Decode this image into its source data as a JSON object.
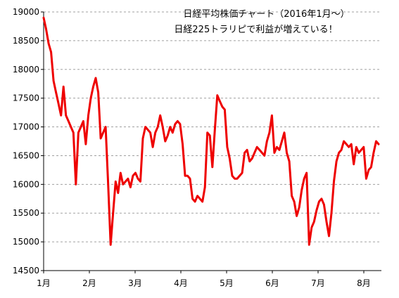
{
  "chart_data": {
    "type": "line",
    "title": "日経平均株価チャート（2016年1月～）",
    "subtitle": "日経225トラリピで利益が増えている！",
    "xlabel": "",
    "ylabel": "",
    "ylim": [
      14500,
      19000
    ],
    "yticks": [
      14500,
      15000,
      15500,
      16000,
      16500,
      17000,
      17500,
      18000,
      18500,
      19000
    ],
    "ytick_labels": [
      "14500",
      "15000",
      "15500",
      "16000",
      "16500",
      "17000",
      "17500",
      "18000",
      "18500",
      "19000"
    ],
    "xtick_labels": [
      "1月",
      "2月",
      "3月",
      "4月",
      "5月",
      "6月",
      "7月",
      "8月"
    ],
    "grid": "horizontal-dashed",
    "legend": "none",
    "series": [
      {
        "color": "#ee0000",
        "values": [
          18900,
          18700,
          18450,
          18300,
          17800,
          17600,
          17400,
          17200,
          17700,
          17200,
          17100,
          17000,
          16900,
          16000,
          16900,
          17000,
          17100,
          16700,
          17200,
          17500,
          17700,
          17850,
          17600,
          16800,
          16900,
          17000,
          16000,
          14950,
          15500,
          16050,
          15850,
          16200,
          16000,
          16050,
          16100,
          15950,
          16150,
          16200,
          16100,
          16050,
          16800,
          17000,
          16950,
          16900,
          16650,
          16900,
          17000,
          17200,
          17000,
          16750,
          16850,
          17000,
          16900,
          17050,
          17100,
          17050,
          16700,
          16150,
          16150,
          16100,
          15750,
          15700,
          15800,
          15750,
          15700,
          15950,
          16900,
          16850,
          16300,
          16950,
          17550,
          17450,
          17350,
          17300,
          16650,
          16450,
          16150,
          16100,
          16100,
          16150,
          16200,
          16550,
          16600,
          16400,
          16450,
          16550,
          16650,
          16600,
          16550,
          16500,
          16750,
          16900,
          17200,
          16550,
          16650,
          16600,
          16750,
          16900,
          16550,
          16400,
          15800,
          15700,
          15450,
          15600,
          15900,
          16100,
          16200,
          14950,
          15250,
          15350,
          15550,
          15700,
          15750,
          15650,
          15350,
          15100,
          15500,
          16050,
          16400,
          16550,
          16600,
          16750,
          16700,
          16650,
          16700,
          16350,
          16650,
          16550,
          16600,
          16650,
          16100,
          16250,
          16300,
          16550,
          16750,
          16700
        ]
      }
    ]
  }
}
